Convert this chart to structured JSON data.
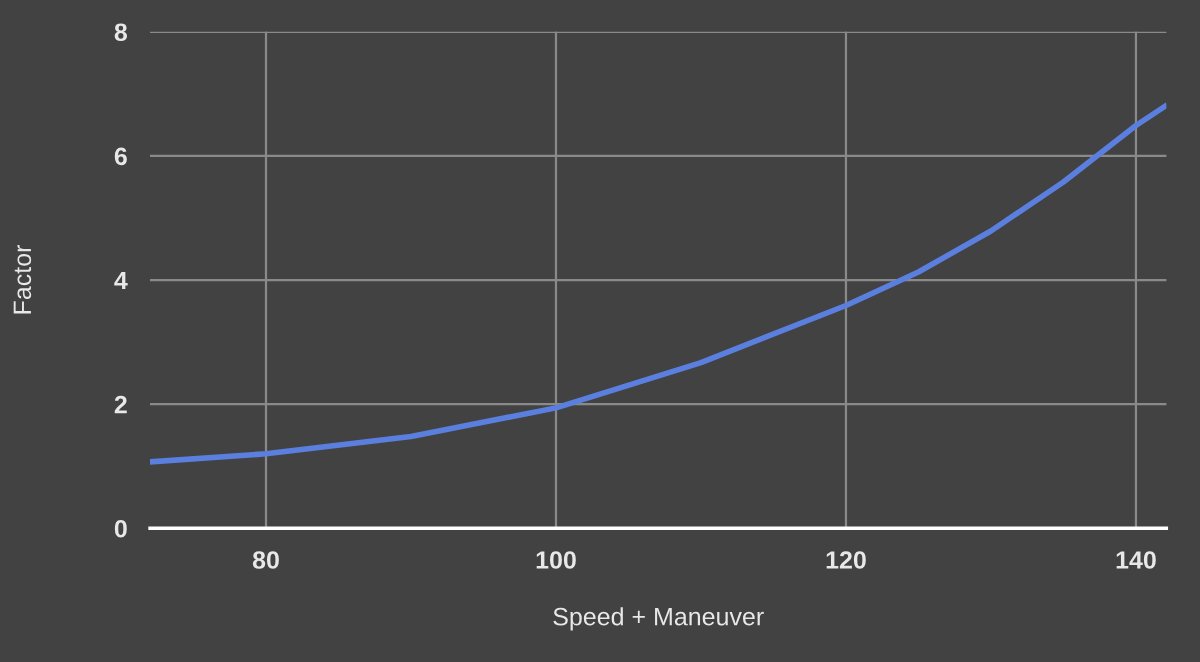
{
  "chart_data": {
    "type": "line",
    "xlabel": "Speed + Maneuver",
    "ylabel": "Factor",
    "x": [
      72,
      80,
      90,
      100,
      110,
      120,
      125,
      130,
      135,
      140,
      142
    ],
    "series": [
      {
        "color": "#5b7fde",
        "values": [
          1.07,
          1.2,
          1.48,
          1.94,
          2.67,
          3.59,
          4.13,
          4.79,
          5.58,
          6.49,
          6.8
        ]
      }
    ],
    "xlim": [
      72,
      142.1
    ],
    "ylim": [
      0,
      8
    ],
    "xticks": [
      80,
      100,
      120,
      140
    ],
    "yticks": [
      0,
      2,
      4,
      6,
      8
    ],
    "grid": true,
    "legend": false,
    "marker": "none",
    "line_style": "solid"
  }
}
